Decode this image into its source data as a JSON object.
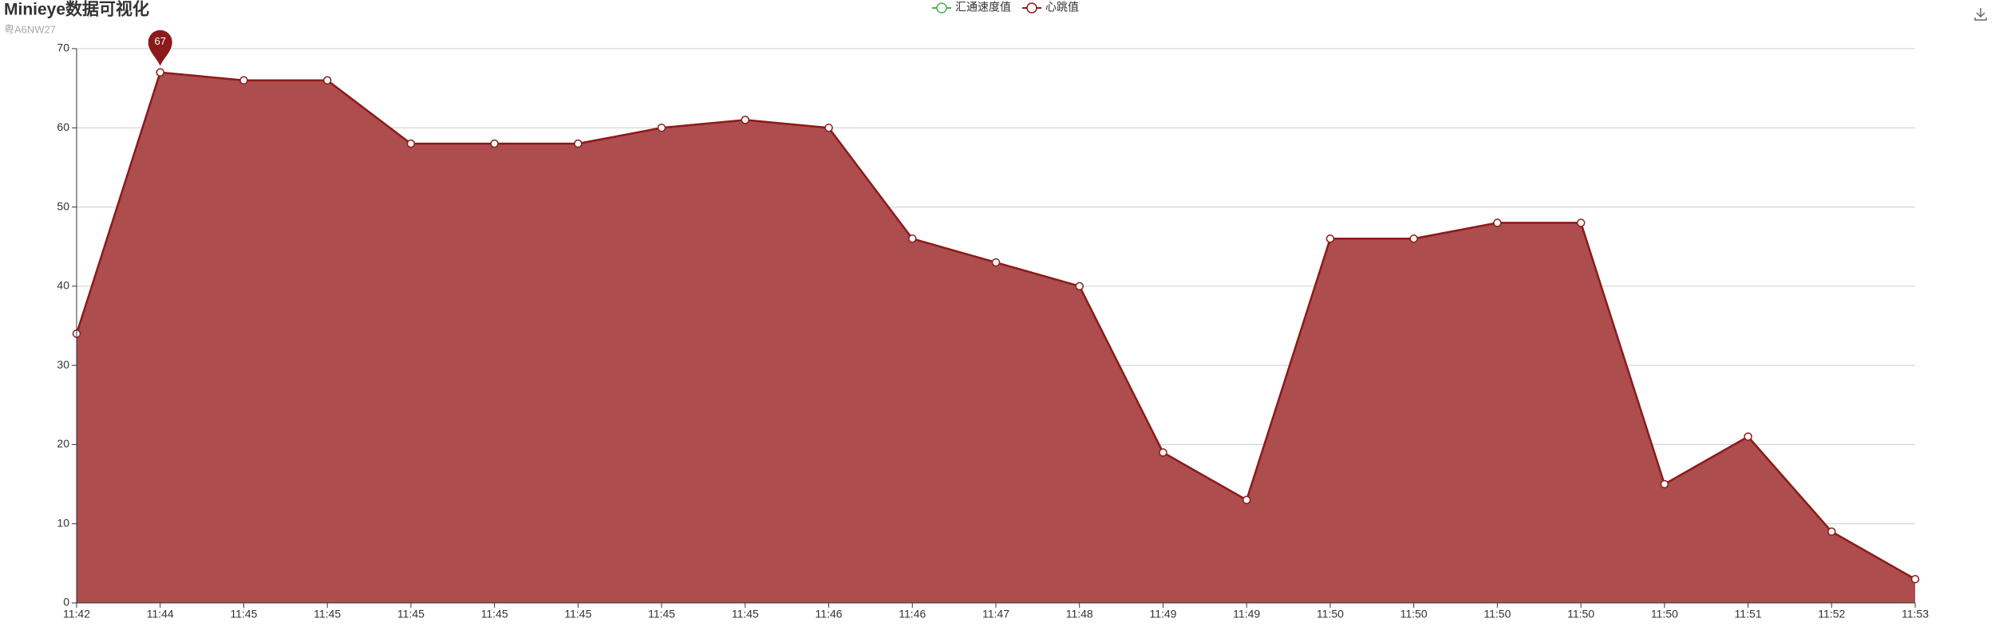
{
  "chart_data": {
    "type": "area",
    "title": "Minieye数据可视化",
    "subtitle": "粤A6NW27",
    "categories": [
      "11:42",
      "11:44",
      "11:45",
      "11:45",
      "11:45",
      "11:45",
      "11:45",
      "11:45",
      "11:45",
      "11:46",
      "11:46",
      "11:47",
      "11:48",
      "11:49",
      "11:49",
      "11:50",
      "11:50",
      "11:50",
      "11:50",
      "11:50",
      "11:51",
      "11:52",
      "11:53"
    ],
    "series": [
      {
        "name": "汇通速度值",
        "color": "#4caf50",
        "values": [
          null,
          null,
          null,
          null,
          null,
          null,
          null,
          null,
          null,
          null,
          null,
          null,
          null,
          null,
          null,
          null,
          null,
          null,
          null,
          null,
          null,
          null,
          null
        ]
      },
      {
        "name": "心跳值",
        "color": "#8b1a1a",
        "area_color": "#ad4d4d",
        "values": [
          34,
          67,
          66,
          66,
          58,
          58,
          58,
          60,
          61,
          60,
          46,
          43,
          40,
          19,
          13,
          46,
          46,
          48,
          48,
          15,
          21,
          9,
          3
        ]
      }
    ],
    "mark_point": "max",
    "ylim": [
      0,
      70
    ],
    "yticks": [
      0,
      10,
      20,
      30,
      40,
      50,
      60,
      70
    ],
    "grid": true
  }
}
